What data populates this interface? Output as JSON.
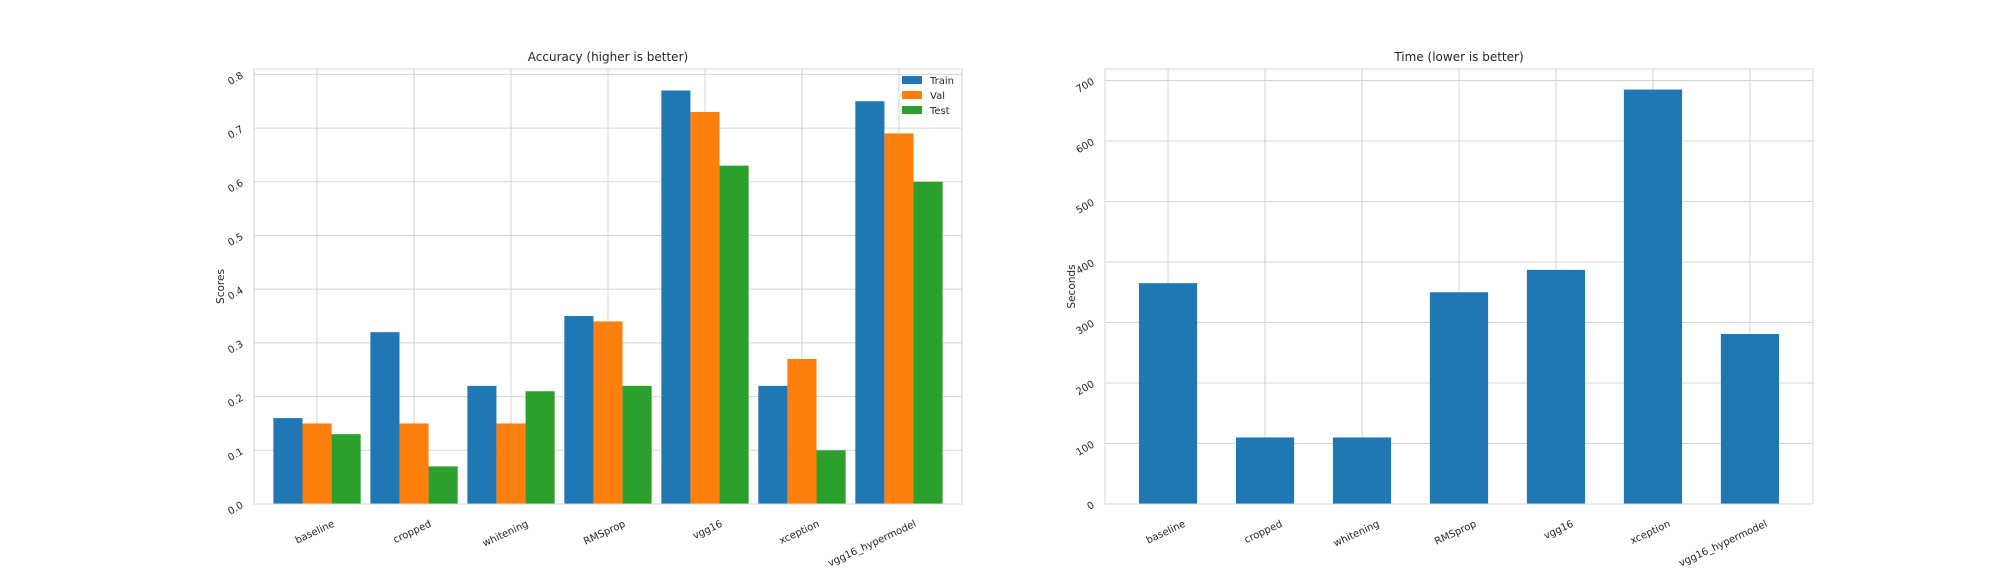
{
  "chart_data": [
    {
      "type": "bar",
      "title": "Accuracy (higher is better)",
      "xlabel": "",
      "ylabel": "Scores",
      "categories": [
        "baseline",
        "cropped",
        "whitening",
        "RMSprop",
        "vgg16",
        "xception",
        "vgg16_hypermodel"
      ],
      "series": [
        {
          "name": "Train",
          "color": "#1f77b4",
          "values": [
            0.16,
            0.32,
            0.22,
            0.35,
            0.77,
            0.22,
            0.75
          ]
        },
        {
          "name": "Val",
          "color": "#ff7f0e",
          "values": [
            0.15,
            0.15,
            0.15,
            0.34,
            0.73,
            0.27,
            0.69
          ]
        },
        {
          "name": "Test",
          "color": "#2ca02c",
          "values": [
            0.13,
            0.07,
            0.21,
            0.22,
            0.63,
            0.1,
            0.6
          ]
        }
      ],
      "ylim": [
        0,
        0.81
      ],
      "yticks": [
        0.0,
        0.1,
        0.2,
        0.3,
        0.4,
        0.5,
        0.6,
        0.7,
        0.8
      ],
      "ytick_labels": [
        "0.0",
        "0.1",
        "0.2",
        "0.3",
        "0.4",
        "0.5",
        "0.6",
        "0.7",
        "0.8"
      ],
      "grid": true,
      "legend": "top-right"
    },
    {
      "type": "bar",
      "title": "Time (lower is better)",
      "xlabel": "",
      "ylabel": "Seconds",
      "categories": [
        "baseline",
        "cropped",
        "whitening",
        "RMSprop",
        "vgg16",
        "xception",
        "vgg16_hypermodel"
      ],
      "series": [
        {
          "name": "",
          "color": "#1f77b4",
          "values": [
            365,
            110,
            110,
            350,
            387,
            685,
            281
          ]
        }
      ],
      "ylim": [
        0,
        719
      ],
      "yticks": [
        0,
        100,
        200,
        300,
        400,
        500,
        600,
        700
      ],
      "ytick_labels": [
        "0",
        "100",
        "200",
        "300",
        "400",
        "500",
        "600",
        "700"
      ],
      "grid": true,
      "legend": "none"
    }
  ]
}
